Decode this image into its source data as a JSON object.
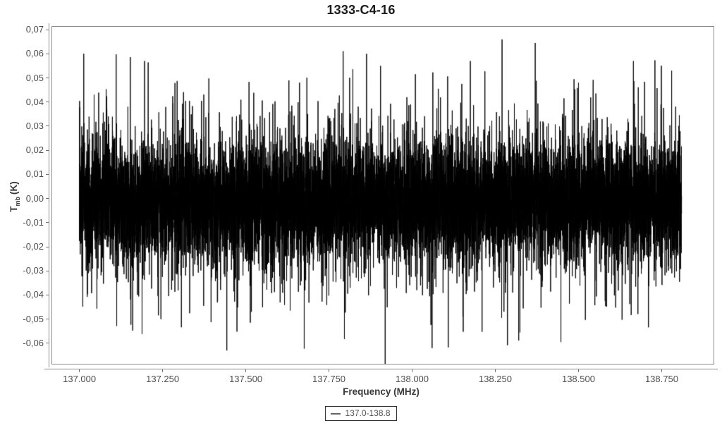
{
  "colors": {
    "title": "#1a1a1a",
    "axis_line": "#8a8a8a",
    "tick_label": "#4d4d4d",
    "axis_title": "#3a3a3a",
    "trace": "#000000",
    "legend_border": "#333333",
    "legend_text": "#555555",
    "legend_sample": "#666666",
    "background": "#ffffff"
  },
  "chart_data": {
    "type": "line",
    "title": "1333-C4-16",
    "xlabel": "Frequency (MHz)",
    "ylabel": "Tmb (K)",
    "ylabel_parts": {
      "main": "T",
      "sub": "mb",
      "unit": "(K)"
    },
    "grid": false,
    "xlim": [
      136.916,
      138.908
    ],
    "ylim": [
      -0.0688,
      0.0715
    ],
    "x_ticks": [
      {
        "value": 137.0,
        "label": "137.000"
      },
      {
        "value": 137.25,
        "label": "137.250"
      },
      {
        "value": 137.5,
        "label": "137.500"
      },
      {
        "value": 137.75,
        "label": "137.750"
      },
      {
        "value": 138.0,
        "label": "138.000"
      },
      {
        "value": 138.25,
        "label": "138.250"
      },
      {
        "value": 138.5,
        "label": "138.500"
      },
      {
        "value": 138.75,
        "label": "138.750"
      }
    ],
    "y_ticks": [
      {
        "value": 0.07,
        "label": "0,07"
      },
      {
        "value": 0.06,
        "label": "0,06"
      },
      {
        "value": 0.05,
        "label": "0,05"
      },
      {
        "value": 0.04,
        "label": "0,04"
      },
      {
        "value": 0.03,
        "label": "0,03"
      },
      {
        "value": 0.02,
        "label": "0,02"
      },
      {
        "value": 0.01,
        "label": "0,01"
      },
      {
        "value": 0.0,
        "label": "0,00"
      },
      {
        "value": -0.01,
        "label": "-0,01"
      },
      {
        "value": -0.02,
        "label": "-0,02"
      },
      {
        "value": -0.03,
        "label": "-0,03"
      },
      {
        "value": -0.04,
        "label": "-0,04"
      },
      {
        "value": -0.05,
        "label": "-0,05"
      },
      {
        "value": -0.06,
        "label": "-0,06"
      }
    ],
    "legend": {
      "position": "bottom-center",
      "entries": [
        {
          "label": "137.0-138.8",
          "sample_color": "#666666"
        }
      ]
    },
    "series": [
      {
        "name": "137.0-138.8",
        "color": "#000000",
        "kind": "noise-spectrum",
        "x_start": 137.0,
        "x_end": 138.81,
        "noise_model": {
          "seed": 1333416,
          "n_points": 12000,
          "mean": -0.0015,
          "sigma_core": 0.0115,
          "sigma_tail": 0.021,
          "tail_fraction": 0.15
        },
        "notable_peaks": [
          [
            137.013,
            0.06
          ],
          [
            137.196,
            0.057
          ],
          [
            137.245,
            -0.05
          ],
          [
            137.443,
            -0.063
          ],
          [
            137.863,
            0.06
          ],
          [
            137.905,
            0.055
          ],
          [
            138.06,
            -0.062
          ],
          [
            138.175,
            0.057
          ],
          [
            138.37,
            0.0645
          ],
          [
            138.5,
            0.048
          ],
          [
            138.665,
            0.057
          ],
          [
            138.78,
            0.053
          ]
        ]
      }
    ]
  }
}
